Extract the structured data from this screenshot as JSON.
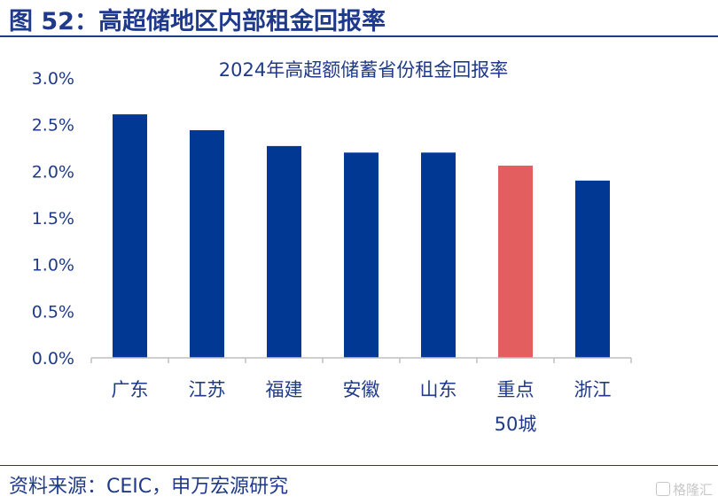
{
  "header": {
    "figure_title": "图 52：高超储地区内部租金回报率"
  },
  "chart_data": {
    "type": "bar",
    "title": "2024年高超额储蓄省份租金回报率",
    "categories": [
      "广东",
      "江苏",
      "福建",
      "安徽",
      "山东",
      "重点\n50城",
      "浙江"
    ],
    "values": [
      2.61,
      2.44,
      2.27,
      2.2,
      2.2,
      2.06,
      1.9
    ],
    "highlight_index": 5,
    "ylim": [
      0,
      3.0
    ],
    "yticks": [
      "0.0%",
      "0.5%",
      "1.0%",
      "1.5%",
      "2.0%",
      "2.5%",
      "3.0%"
    ],
    "xlabel": "",
    "ylabel": "",
    "grid": false,
    "colors": {
      "bar": "#003893",
      "highlight": "#e35f5f"
    }
  },
  "footer": {
    "source": "资料来源：CEIC，申万宏源研究"
  },
  "watermark": {
    "icon": "g-logo-icon",
    "text": "格隆汇"
  }
}
